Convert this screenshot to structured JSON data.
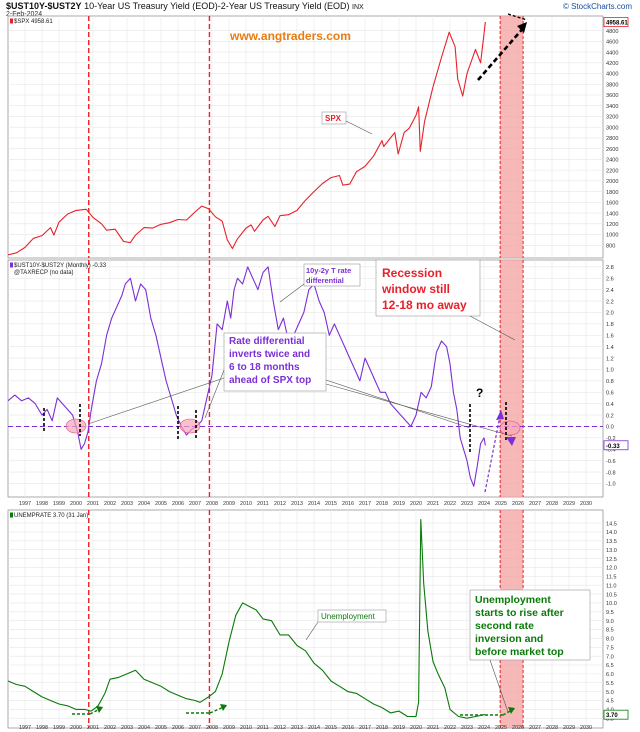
{
  "header": {
    "title_symbol": "$UST10Y-$UST2Y",
    "title_rest": "10-Year US Treasury Yield (EOD)-2-Year US Treasury Yield (EOD)",
    "title_suffix": "INX",
    "date": "2-Feb-2024",
    "credit": "© StockCharts.com",
    "watermark": "www.angtraders.com"
  },
  "colors": {
    "spx": "#e8202a",
    "diff": "#7b2fd6",
    "unemp": "#0a7a0a",
    "recession": "#e8202a",
    "watermark": "#e87d10",
    "annot_red": "#e8202a",
    "annot_purple": "#7b2fd6",
    "annot_green": "#0a7a0a"
  },
  "chart_data": [
    {
      "type": "line",
      "legend": "$SPX 4958.61",
      "last_value": "4958.61",
      "series_label": "SPX",
      "y_ticks": [
        800,
        1000,
        1200,
        1400,
        1600,
        1800,
        2000,
        2200,
        2400,
        2600,
        2800,
        3000,
        3200,
        3400,
        3600,
        3800,
        4000,
        4200,
        4400,
        4600,
        4800
      ],
      "ylim": [
        600,
        4960
      ],
      "x": [
        1996.0,
        1996.5,
        1997.0,
        1997.5,
        1998.0,
        1998.5,
        1998.7,
        1999.0,
        1999.5,
        2000.0,
        2000.6,
        2001.0,
        2001.5,
        2001.8,
        2002.3,
        2002.8,
        2003.2,
        2003.5,
        2004.0,
        2004.5,
        2005.0,
        2005.5,
        2006.0,
        2006.5,
        2007.0,
        2007.4,
        2007.8,
        2008.2,
        2008.6,
        2008.9,
        2009.2,
        2009.5,
        2010.0,
        2010.3,
        2010.5,
        2011.0,
        2011.3,
        2011.7,
        2012.0,
        2012.5,
        2013.0,
        2013.5,
        2014.0,
        2014.5,
        2015.0,
        2015.5,
        2015.7,
        2016.1,
        2016.5,
        2017.0,
        2017.5,
        2018.0,
        2018.1,
        2018.5,
        2018.75,
        2018.95,
        2019.3,
        2019.6,
        2020.0,
        2020.15,
        2020.25,
        2020.5,
        2021.0,
        2021.5,
        2021.95,
        2022.3,
        2022.45,
        2022.75,
        2023.0,
        2023.5,
        2023.8,
        2024.08
      ],
      "values": [
        620,
        660,
        760,
        930,
        980,
        1130,
        990,
        1230,
        1380,
        1450,
        1470,
        1320,
        1200,
        1080,
        1100,
        870,
        850,
        990,
        1130,
        1120,
        1190,
        1220,
        1280,
        1270,
        1420,
        1530,
        1480,
        1330,
        1250,
        900,
        740,
        920,
        1120,
        1180,
        1060,
        1270,
        1340,
        1150,
        1350,
        1370,
        1450,
        1640,
        1800,
        1950,
        2060,
        2100,
        1920,
        1940,
        2170,
        2270,
        2460,
        2750,
        2640,
        2800,
        2900,
        2500,
        2900,
        2980,
        3220,
        3380,
        2550,
        3100,
        3750,
        4300,
        4770,
        4500,
        3900,
        3580,
        4000,
        4450,
        4200,
        4958
      ]
    },
    {
      "type": "line",
      "legend": "$UST10Y-$UST2Y (Monthly) -0.33",
      "legend2": "@TAXRECP (no data)",
      "last_value": "-0.33",
      "series_label": "10y-2y T rate differential",
      "y_ticks": [
        -1.0,
        -0.8,
        -0.6,
        -0.4,
        -0.2,
        0.0,
        0.2,
        0.4,
        0.6,
        0.8,
        1.0,
        1.2,
        1.4,
        1.6,
        1.8,
        2.0,
        2.2,
        2.4,
        2.6,
        2.8
      ],
      "ylim": [
        -1.15,
        2.85
      ],
      "x": [
        1996.0,
        1996.4,
        1996.8,
        1997.2,
        1997.6,
        1998.0,
        1998.3,
        1998.6,
        1998.9,
        1999.2,
        1999.5,
        1999.8,
        2000.1,
        2000.3,
        2000.5,
        2000.7,
        2000.9,
        2001.2,
        2001.5,
        2001.8,
        2002.1,
        2002.4,
        2002.7,
        2002.9,
        2003.2,
        2003.5,
        2003.8,
        2004.1,
        2004.4,
        2004.7,
        2005.0,
        2005.3,
        2005.6,
        2005.9,
        2006.2,
        2006.5,
        2006.8,
        2007.1,
        2007.4,
        2007.7,
        2008.0,
        2008.3,
        2008.6,
        2008.9,
        2009.1,
        2009.3,
        2009.5,
        2009.8,
        2010.1,
        2010.4,
        2010.7,
        2011.0,
        2011.3,
        2011.6,
        2011.9,
        2012.2,
        2012.5,
        2012.8,
        2013.1,
        2013.4,
        2013.7,
        2014.0,
        2014.3,
        2014.6,
        2014.9,
        2015.2,
        2015.5,
        2015.8,
        2016.1,
        2016.4,
        2016.7,
        2017.0,
        2017.3,
        2017.6,
        2017.9,
        2018.2,
        2018.5,
        2018.8,
        2019.1,
        2019.4,
        2019.7,
        2020.0,
        2020.3,
        2020.6,
        2020.9,
        2021.2,
        2021.5,
        2021.8,
        2022.0,
        2022.2,
        2022.4,
        2022.6,
        2022.8,
        2023.0,
        2023.2,
        2023.4,
        2023.6,
        2023.8,
        2024.0,
        2024.08
      ],
      "values": [
        0.45,
        0.55,
        0.45,
        0.5,
        0.4,
        0.2,
        0.3,
        0.1,
        0.5,
        0.4,
        0.3,
        0.2,
        -0.1,
        -0.4,
        -0.3,
        -0.1,
        0.3,
        0.8,
        1.1,
        1.6,
        1.9,
        2.1,
        2.3,
        2.5,
        2.6,
        2.2,
        2.5,
        2.4,
        1.9,
        1.6,
        1.2,
        0.8,
        0.5,
        0.2,
        0.0,
        -0.15,
        -0.05,
        0.0,
        0.1,
        0.5,
        0.9,
        1.8,
        1.7,
        2.2,
        1.9,
        2.4,
        2.6,
        2.5,
        2.8,
        2.6,
        2.4,
        2.7,
        2.8,
        2.2,
        1.7,
        1.9,
        1.5,
        1.6,
        1.8,
        2.0,
        2.4,
        2.5,
        2.2,
        2.0,
        1.6,
        1.8,
        1.6,
        1.4,
        1.2,
        1.0,
        0.8,
        1.2,
        1.0,
        0.8,
        0.6,
        0.6,
        0.4,
        0.3,
        0.2,
        0.1,
        0.0,
        0.2,
        0.6,
        0.5,
        0.7,
        1.3,
        1.5,
        1.4,
        1.1,
        0.6,
        0.3,
        -0.2,
        -0.4,
        -0.6,
        -0.9,
        -1.05,
        -0.7,
        -0.3,
        -0.2,
        -0.33
      ]
    },
    {
      "type": "line",
      "legend": "UNEMPRATE 3.70 (31 Jan)",
      "last_value": "3.70",
      "series_label": "Unemployment",
      "y_ticks": [
        3.5,
        4.0,
        4.5,
        5.0,
        5.5,
        6.0,
        6.5,
        7.0,
        7.5,
        8.0,
        8.5,
        9.0,
        9.5,
        10.0,
        10.5,
        11.0,
        11.5,
        12.0,
        12.5,
        13.0,
        13.5,
        14.0,
        14.5
      ],
      "ylim": [
        3.4,
        14.9
      ],
      "x": [
        1996.0,
        1996.5,
        1997.0,
        1997.5,
        1998.0,
        1998.5,
        1999.0,
        1999.5,
        2000.0,
        2000.5,
        2000.9,
        2001.3,
        2001.7,
        2002.0,
        2002.5,
        2003.0,
        2003.5,
        2004.0,
        2004.5,
        2005.0,
        2005.5,
        2006.0,
        2006.5,
        2007.0,
        2007.3,
        2007.8,
        2008.2,
        2008.6,
        2009.0,
        2009.4,
        2009.8,
        2010.2,
        2010.6,
        2011.0,
        2011.5,
        2012.0,
        2012.5,
        2013.0,
        2013.5,
        2014.0,
        2014.5,
        2015.0,
        2015.5,
        2016.0,
        2016.5,
        2017.0,
        2017.5,
        2018.0,
        2018.5,
        2019.0,
        2019.5,
        2020.0,
        2020.15,
        2020.28,
        2020.45,
        2020.7,
        2021.0,
        2021.3,
        2021.7,
        2022.0,
        2022.5,
        2023.0,
        2023.5,
        2024.0,
        2024.08
      ],
      "values": [
        5.6,
        5.4,
        5.3,
        5.0,
        4.7,
        4.5,
        4.3,
        4.2,
        4.0,
        4.0,
        3.9,
        4.2,
        4.9,
        5.7,
        5.8,
        6.0,
        6.2,
        5.7,
        5.5,
        5.3,
        5.0,
        4.8,
        4.6,
        4.5,
        4.4,
        4.7,
        5.0,
        6.0,
        7.8,
        9.3,
        10.0,
        9.8,
        9.6,
        9.1,
        9.0,
        8.2,
        8.2,
        7.6,
        7.3,
        6.6,
        6.2,
        5.6,
        5.3,
        5.0,
        4.9,
        4.6,
        4.3,
        4.1,
        3.8,
        3.9,
        3.6,
        3.6,
        4.4,
        14.7,
        11.1,
        8.4,
        6.7,
        6.0,
        5.2,
        4.0,
        3.6,
        3.5,
        3.6,
        3.7,
        3.7
      ]
    }
  ],
  "x_axis": {
    "years": [
      "1997",
      "1998",
      "1999",
      "2000",
      "2001",
      "2002",
      "2003",
      "2004",
      "2005",
      "2006",
      "2007",
      "2008",
      "2009",
      "2010",
      "2011",
      "2012",
      "2013",
      "2014",
      "2015",
      "2016",
      "2017",
      "2018",
      "2019",
      "2020",
      "2021",
      "2022",
      "2023",
      "2024",
      "2025",
      "2026",
      "2027",
      "2028",
      "2029",
      "2030"
    ],
    "range": [
      1996.0,
      2031.0
    ]
  },
  "vlines": [
    2000.75,
    2007.85
  ],
  "recession_window": [
    2024.95,
    2026.3
  ],
  "annotations": {
    "spx_label": "SPX",
    "diff_label_line1": "10y-2y T rate",
    "diff_label_line2": "differential",
    "recession_line1": "Recession",
    "recession_line2": "window still",
    "recession_line3": "12-18 mo away",
    "invert_line1": "Rate differential",
    "invert_line2": "inverts twice and",
    "invert_line3": "6 to 18 months",
    "invert_line4": "ahead of SPX top",
    "question": "?",
    "unemp_label": "Unemployment",
    "unemp_line1": "Unemployment",
    "unemp_line2": "starts to rise after",
    "unemp_line3": "second rate",
    "unemp_line4": "inversion and",
    "unemp_line5": "before market top"
  }
}
